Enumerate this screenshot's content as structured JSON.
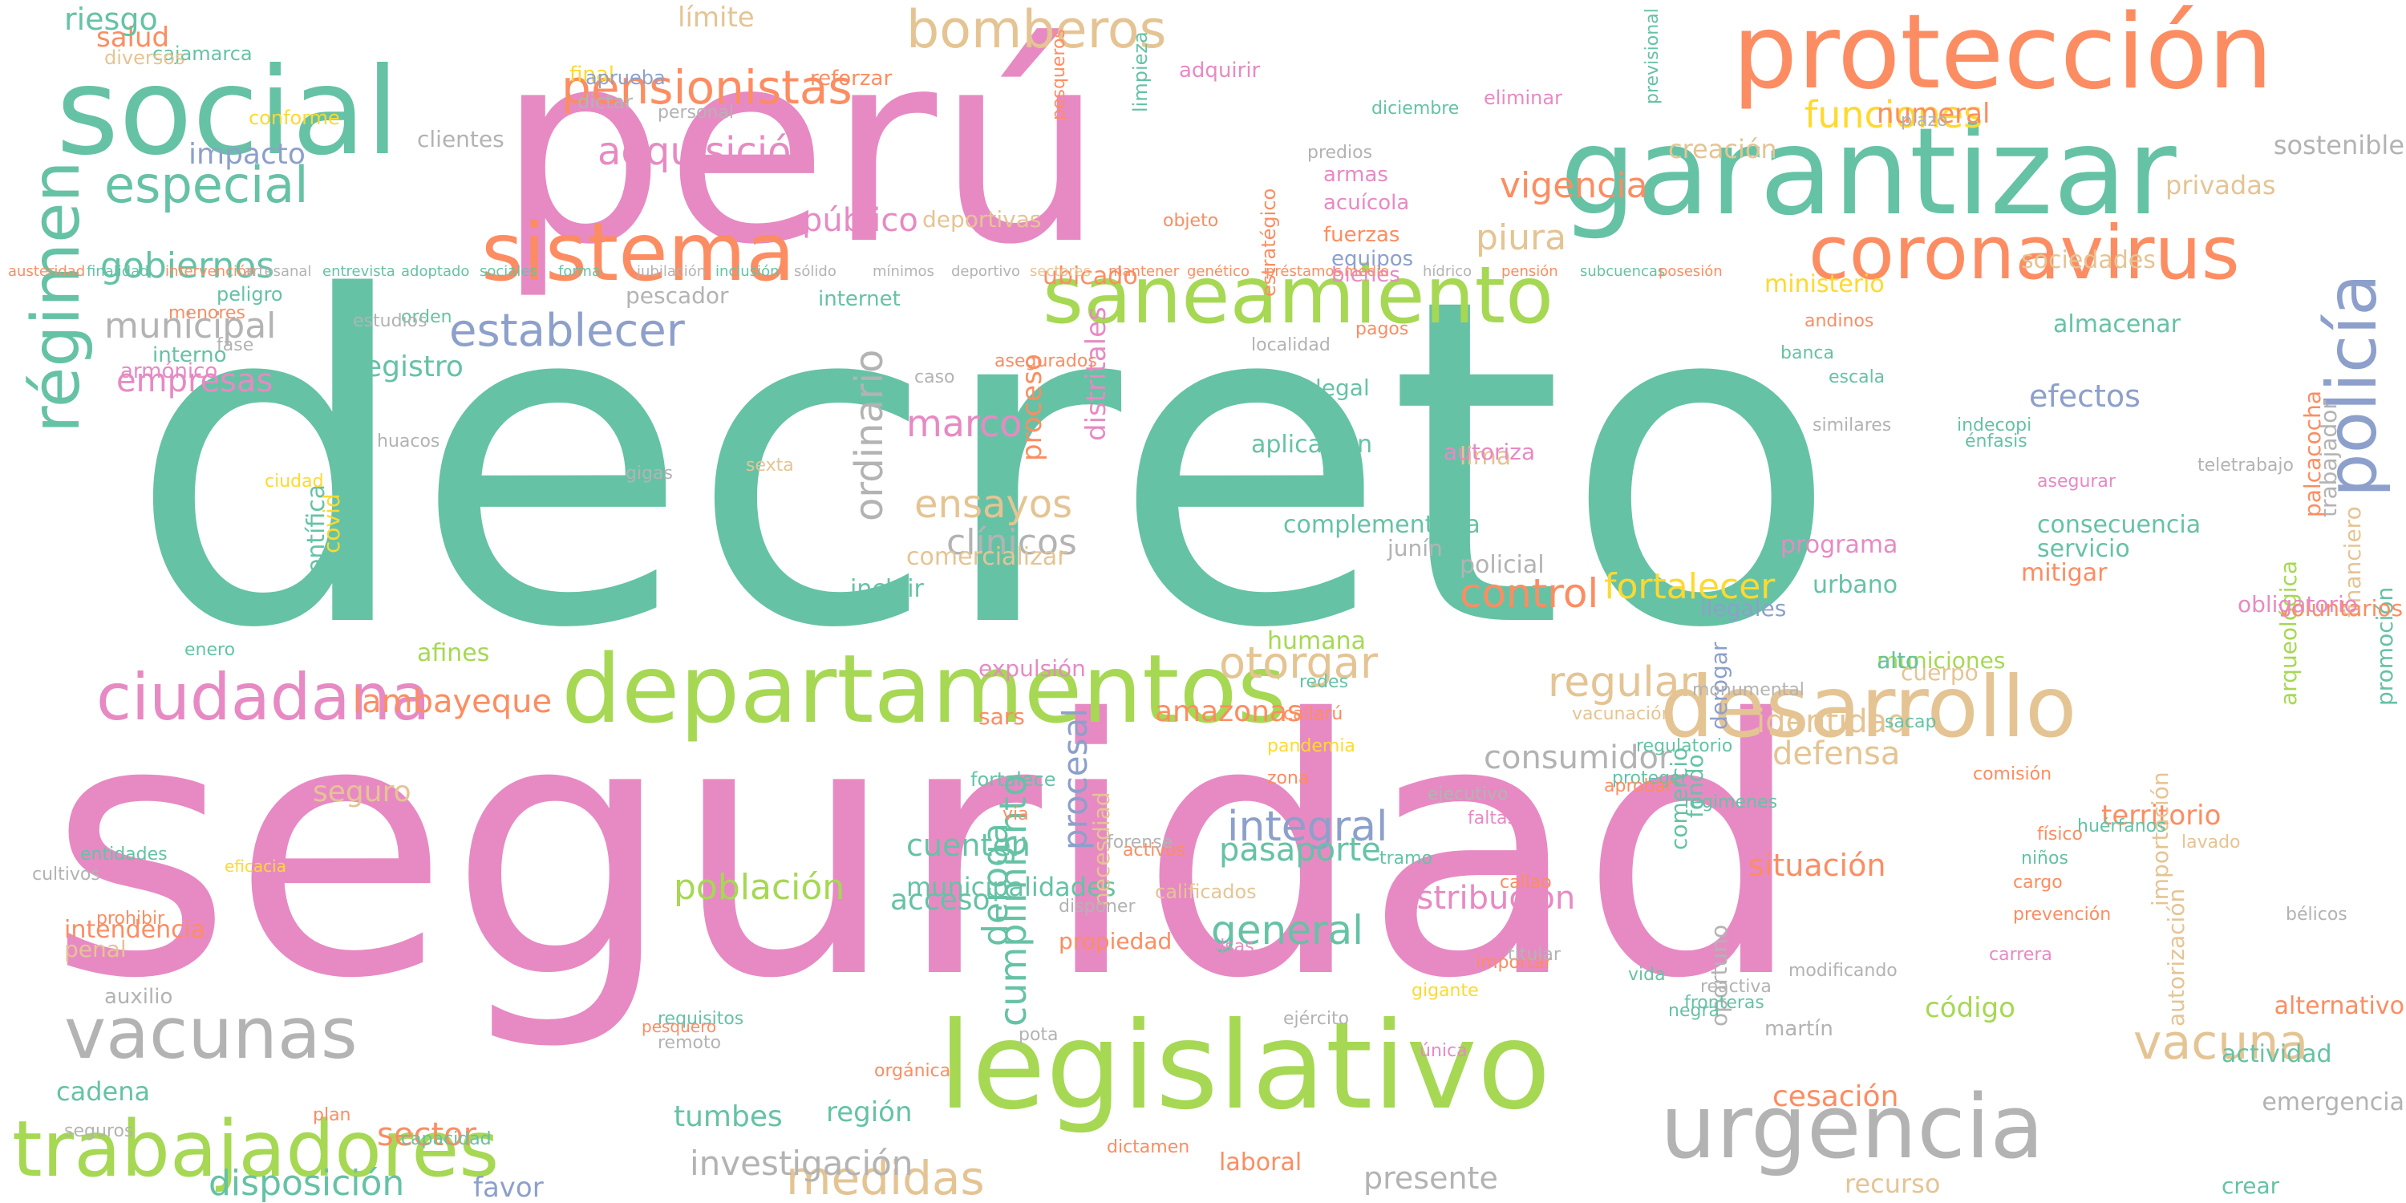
{
  "palette": {
    "teal": "#66c2a5",
    "pink": "#e78ac3",
    "green": "#a6d854",
    "orange": "#fc8d62",
    "tan": "#e5c494",
    "gray": "#b3b3b3",
    "blue": "#8da0cb",
    "yellow": "#ffd92f"
  },
  "words": [
    {
      "text": "decreto",
      "color": "teal"
    },
    {
      "text": "seguridad",
      "color": "pink"
    },
    {
      "text": "perú",
      "color": "pink"
    },
    {
      "text": "garantizar",
      "color": "teal"
    },
    {
      "text": "protección",
      "color": "orange"
    },
    {
      "text": "social",
      "color": "teal"
    },
    {
      "text": "legislativo",
      "color": "green"
    },
    {
      "text": "departamentos",
      "color": "green"
    },
    {
      "text": "saneamiento",
      "color": "green"
    },
    {
      "text": "sistema",
      "color": "orange"
    },
    {
      "text": "coronavirus",
      "color": "orange"
    },
    {
      "text": "urgencia",
      "color": "gray"
    },
    {
      "text": "desarrollo",
      "color": "tan"
    },
    {
      "text": "vacunas",
      "color": "gray"
    },
    {
      "text": "trabajadores",
      "color": "green"
    },
    {
      "text": "ciudadana",
      "color": "pink"
    },
    {
      "text": "bomberos",
      "color": "tan"
    },
    {
      "text": "pensionistas",
      "color": "orange"
    },
    {
      "text": "régimen",
      "color": "teal"
    },
    {
      "text": "policía",
      "color": "blue"
    },
    {
      "text": "establecer",
      "color": "blue"
    },
    {
      "text": "especial",
      "color": "teal"
    },
    {
      "text": "adquisición",
      "color": "pink"
    },
    {
      "text": "funciones",
      "color": "yellow"
    },
    {
      "text": "control",
      "color": "orange"
    },
    {
      "text": "vacuna",
      "color": "tan"
    },
    {
      "text": "medidas",
      "color": "tan"
    },
    {
      "text": "integral",
      "color": "blue"
    },
    {
      "text": "general",
      "color": "teal"
    },
    {
      "text": "otorgar",
      "color": "tan"
    },
    {
      "text": "regular",
      "color": "tan"
    },
    {
      "text": "vigencia",
      "color": "orange"
    },
    {
      "text": "fortalecer",
      "color": "yellow"
    },
    {
      "text": "ensayos",
      "color": "tan"
    },
    {
      "text": "clínicos",
      "color": "gray"
    },
    {
      "text": "marco",
      "color": "pink"
    },
    {
      "text": "piura",
      "color": "tan"
    },
    {
      "text": "público",
      "color": "pink"
    },
    {
      "text": "municipal",
      "color": "gray"
    },
    {
      "text": "gobiernos",
      "color": "teal"
    },
    {
      "text": "empresas",
      "color": "pink"
    },
    {
      "text": "impacto",
      "color": "blue"
    },
    {
      "text": "salud",
      "color": "orange"
    },
    {
      "text": "riesgo",
      "color": "teal"
    },
    {
      "text": "límite",
      "color": "tan"
    },
    {
      "text": "numeral",
      "color": "orange"
    },
    {
      "text": "creación",
      "color": "tan"
    },
    {
      "text": "sostenible",
      "color": "gray"
    },
    {
      "text": "efectos",
      "color": "blue"
    },
    {
      "text": "privadas",
      "color": "tan"
    },
    {
      "text": "sociedades",
      "color": "tan"
    },
    {
      "text": "ubicado",
      "color": "orange"
    },
    {
      "text": "ministerio",
      "color": "yellow"
    },
    {
      "text": "almacenar",
      "color": "teal"
    },
    {
      "text": "distritales",
      "color": "pink"
    },
    {
      "text": "ordinario",
      "color": "gray"
    },
    {
      "text": "proceso",
      "color": "orange"
    },
    {
      "text": "registro",
      "color": "teal"
    },
    {
      "text": "lambayeque",
      "color": "orange"
    },
    {
      "text": "defensa",
      "color": "tan"
    },
    {
      "text": "disposición",
      "color": "teal"
    },
    {
      "text": "pasaporte",
      "color": "teal"
    },
    {
      "text": "seguro",
      "color": "tan"
    },
    {
      "text": "consumidor",
      "color": "gray"
    },
    {
      "text": "situación",
      "color": "orange"
    },
    {
      "text": "identidad",
      "color": "tan"
    },
    {
      "text": "amazonas",
      "color": "orange"
    },
    {
      "text": "distribución",
      "color": "pink"
    },
    {
      "text": "deroga",
      "color": "teal"
    },
    {
      "text": "procesal",
      "color": "blue"
    },
    {
      "text": "cumplimiento",
      "color": "teal"
    },
    {
      "text": "población",
      "color": "green"
    },
    {
      "text": "investigación",
      "color": "gray"
    },
    {
      "text": "cuenten",
      "color": "teal"
    },
    {
      "text": "tumbes",
      "color": "teal"
    },
    {
      "text": "sector",
      "color": "orange"
    },
    {
      "text": "favor",
      "color": "blue"
    },
    {
      "text": "presente",
      "color": "gray"
    },
    {
      "text": "acceso",
      "color": "teal"
    },
    {
      "text": "cesación",
      "color": "orange"
    },
    {
      "text": "región",
      "color": "teal"
    },
    {
      "text": "municipalidades",
      "color": "teal"
    },
    {
      "text": "código",
      "color": "green"
    },
    {
      "text": "territorio",
      "color": "orange"
    },
    {
      "text": "alternativo",
      "color": "orange"
    },
    {
      "text": "actividad",
      "color": "teal"
    },
    {
      "text": "emergencia",
      "color": "gray"
    },
    {
      "text": "crear",
      "color": "teal"
    },
    {
      "text": "recurso",
      "color": "tan"
    },
    {
      "text": "laboral",
      "color": "orange"
    },
    {
      "text": "cadena",
      "color": "teal"
    },
    {
      "text": "penal",
      "color": "tan"
    },
    {
      "text": "intendencia",
      "color": "orange"
    },
    {
      "text": "complementaria",
      "color": "teal"
    },
    {
      "text": "humana",
      "color": "green"
    },
    {
      "text": "policial",
      "color": "gray"
    },
    {
      "text": "consecuencia",
      "color": "teal"
    },
    {
      "text": "servicio",
      "color": "teal"
    },
    {
      "text": "mitigar",
      "color": "orange"
    },
    {
      "text": "urbano",
      "color": "teal"
    },
    {
      "text": "programa",
      "color": "pink"
    },
    {
      "text": "ilegales",
      "color": "blue"
    },
    {
      "text": "municiones",
      "color": "green"
    },
    {
      "text": "cuerpo",
      "color": "tan"
    },
    {
      "text": "alto",
      "color": "teal"
    },
    {
      "text": "lima",
      "color": "tan"
    },
    {
      "text": "cuentas",
      "color": "teal"
    },
    {
      "text": "incluir",
      "color": "teal"
    },
    {
      "text": "comercializar",
      "color": "tan"
    },
    {
      "text": "aplicación",
      "color": "teal"
    },
    {
      "text": "legal",
      "color": "teal"
    },
    {
      "text": "autoriza",
      "color": "pink"
    },
    {
      "text": "afines",
      "color": "green"
    },
    {
      "text": "científica",
      "color": "teal"
    },
    {
      "text": "covid",
      "color": "yellow"
    },
    {
      "text": "junín",
      "color": "gray"
    },
    {
      "text": "sars",
      "color": "orange"
    },
    {
      "text": "expulsión",
      "color": "pink"
    },
    {
      "text": "propiedad",
      "color": "orange"
    },
    {
      "text": "necesdiad",
      "color": "tan"
    },
    {
      "text": "comercio",
      "color": "teal"
    },
    {
      "text": "fondo",
      "color": "teal"
    },
    {
      "text": "derogar",
      "color": "blue"
    },
    {
      "text": "oportuno",
      "color": "gray"
    },
    {
      "text": "importación",
      "color": "tan"
    },
    {
      "text": "autorización",
      "color": "tan"
    },
    {
      "text": "arqueológica",
      "color": "green"
    },
    {
      "text": "promoción",
      "color": "teal"
    },
    {
      "text": "financiero",
      "color": "tan"
    },
    {
      "text": "trabajador",
      "color": "gray"
    },
    {
      "text": "palcacocha",
      "color": "orange"
    },
    {
      "text": "voluntarios",
      "color": "orange"
    },
    {
      "text": "obligatorio",
      "color": "pink"
    },
    {
      "text": "armónico",
      "color": "pink"
    },
    {
      "text": "interno",
      "color": "teal"
    },
    {
      "text": "peligro",
      "color": "teal"
    },
    {
      "text": "pescador",
      "color": "gray"
    },
    {
      "text": "internet",
      "color": "teal"
    },
    {
      "text": "deportivas",
      "color": "tan"
    },
    {
      "text": "armas",
      "color": "pink"
    },
    {
      "text": "acuícola",
      "color": "pink"
    },
    {
      "text": "fuerzas",
      "color": "orange"
    },
    {
      "text": "equipos",
      "color": "blue"
    },
    {
      "text": "bienes",
      "color": "pink"
    },
    {
      "text": "eliminar",
      "color": "pink"
    },
    {
      "text": "adquirir",
      "color": "pink"
    },
    {
      "text": "final",
      "color": "yellow"
    },
    {
      "text": "aprueba",
      "color": "blue"
    },
    {
      "text": "cajamarca",
      "color": "teal"
    },
    {
      "text": "diversos",
      "color": "tan"
    },
    {
      "text": "conforme",
      "color": "yellow"
    },
    {
      "text": "clientes",
      "color": "gray"
    },
    {
      "text": "dictar",
      "color": "gray"
    },
    {
      "text": "reforzar",
      "color": "orange"
    },
    {
      "text": "personal",
      "color": "gray"
    },
    {
      "text": "previsional",
      "color": "teal"
    },
    {
      "text": "estratégico",
      "color": "orange"
    },
    {
      "text": "pesqueros",
      "color": "orange"
    },
    {
      "text": "limpieza",
      "color": "teal"
    },
    {
      "text": "diciembre",
      "color": "teal"
    },
    {
      "text": "calificados",
      "color": "tan"
    },
    {
      "text": "activos",
      "color": "orange"
    },
    {
      "text": "disponer",
      "color": "gray"
    },
    {
      "text": "remoto",
      "color": "gray"
    },
    {
      "text": "requisitos",
      "color": "teal"
    },
    {
      "text": "orgánica",
      "color": "orange"
    },
    {
      "text": "pota",
      "color": "gray"
    },
    {
      "text": "pesquero",
      "color": "orange"
    },
    {
      "text": "auxilio",
      "color": "gray"
    },
    {
      "text": "plan",
      "color": "orange"
    },
    {
      "text": "capacidad",
      "color": "teal"
    },
    {
      "text": "dictamen",
      "color": "orange"
    },
    {
      "text": "eficacia",
      "color": "yellow"
    },
    {
      "text": "martín",
      "color": "gray"
    },
    {
      "text": "única",
      "color": "pink"
    },
    {
      "text": "ejército",
      "color": "gray"
    },
    {
      "text": "falsas",
      "color": "pink"
    },
    {
      "text": "importar",
      "color": "orange"
    },
    {
      "text": "vida",
      "color": "teal"
    },
    {
      "text": "reactiva",
      "color": "gray"
    },
    {
      "text": "negra",
      "color": "teal"
    },
    {
      "text": "modificando",
      "color": "gray"
    },
    {
      "text": "carrera",
      "color": "pink"
    },
    {
      "text": "prevención",
      "color": "orange"
    },
    {
      "text": "cargo",
      "color": "orange"
    },
    {
      "text": "niños",
      "color": "teal"
    },
    {
      "text": "físico",
      "color": "orange"
    },
    {
      "text": "lavado",
      "color": "tan"
    },
    {
      "text": "huérfanos",
      "color": "teal"
    },
    {
      "text": "fortalece",
      "color": "teal"
    },
    {
      "text": "vía",
      "color": "orange"
    },
    {
      "text": "forense",
      "color": "gray"
    },
    {
      "text": "tramo",
      "color": "teal"
    },
    {
      "text": "faltas",
      "color": "pink"
    },
    {
      "text": "callao",
      "color": "orange"
    },
    {
      "text": "titular",
      "color": "gray"
    },
    {
      "text": "proteger",
      "color": "teal"
    },
    {
      "text": "regulatorio",
      "color": "teal"
    },
    {
      "text": "monumental",
      "color": "gray"
    },
    {
      "text": "redes",
      "color": "teal"
    },
    {
      "text": "callarú",
      "color": "orange"
    },
    {
      "text": "pandemia",
      "color": "yellow"
    },
    {
      "text": "zona",
      "color": "orange"
    },
    {
      "text": "ejecutivo",
      "color": "gray"
    },
    {
      "text": "aprobar",
      "color": "orange"
    },
    {
      "text": "regimenes",
      "color": "teal"
    },
    {
      "text": "vacunación",
      "color": "tan"
    },
    {
      "text": "plazo",
      "color": "gray"
    },
    {
      "text": "asegurar",
      "color": "pink"
    },
    {
      "text": "teletrabajo",
      "color": "gray"
    },
    {
      "text": "indecopi",
      "color": "teal"
    },
    {
      "text": "huacos",
      "color": "gray"
    },
    {
      "text": "ciudad",
      "color": "yellow"
    },
    {
      "text": "gigas",
      "color": "gray"
    },
    {
      "text": "sexta",
      "color": "tan"
    },
    {
      "text": "caso",
      "color": "gray"
    },
    {
      "text": "asegurados",
      "color": "orange"
    },
    {
      "text": "orden",
      "color": "teal"
    },
    {
      "text": "predios",
      "color": "gray"
    },
    {
      "text": "objeto",
      "color": "orange"
    },
    {
      "text": "estudios",
      "color": "gray"
    },
    {
      "text": "menores",
      "color": "orange"
    },
    {
      "text": "seguros",
      "color": "gray"
    },
    {
      "text": "enero",
      "color": "teal"
    },
    {
      "text": "entidades",
      "color": "teal"
    },
    {
      "text": "prohibir",
      "color": "orange"
    },
    {
      "text": "gigante",
      "color": "yellow"
    },
    {
      "text": "fronteras",
      "color": "teal"
    },
    {
      "text": "bélicos",
      "color": "gray"
    },
    {
      "text": "cultivos",
      "color": "gray"
    },
    {
      "text": "fase",
      "color": "gray"
    },
    {
      "text": "sacap",
      "color": "teal"
    },
    {
      "text": "comisión",
      "color": "orange"
    },
    {
      "text": "localidad",
      "color": "gray"
    },
    {
      "text": "pagos",
      "color": "orange"
    },
    {
      "text": "andinos",
      "color": "orange"
    },
    {
      "text": "banca",
      "color": "teal"
    },
    {
      "text": "escala",
      "color": "teal"
    },
    {
      "text": "similares",
      "color": "gray"
    },
    {
      "text": "énfasis",
      "color": "teal"
    },
    {
      "text": "austeridad",
      "color": "orange"
    },
    {
      "text": "finalidad",
      "color": "teal"
    },
    {
      "text": "intervención",
      "color": "orange"
    },
    {
      "text": "artesanal",
      "color": "gray"
    },
    {
      "text": "entrevista",
      "color": "teal"
    },
    {
      "text": "adoptado",
      "color": "teal"
    },
    {
      "text": "sociales",
      "color": "teal"
    },
    {
      "text": "forma",
      "color": "teal"
    },
    {
      "text": "jubilación",
      "color": "gray"
    },
    {
      "text": "inclusión",
      "color": "teal"
    },
    {
      "text": "sólido",
      "color": "gray"
    },
    {
      "text": "mínimos",
      "color": "gray"
    },
    {
      "text": "deportivo",
      "color": "gray"
    },
    {
      "text": "sectores",
      "color": "tan"
    },
    {
      "text": "mantener",
      "color": "orange"
    },
    {
      "text": "genético",
      "color": "orange"
    },
    {
      "text": "préstamos",
      "color": "orange"
    },
    {
      "text": "medio",
      "color": "orange"
    },
    {
      "text": "hídrico",
      "color": "gray"
    },
    {
      "text": "pensión",
      "color": "orange"
    },
    {
      "text": "subcuencas",
      "color": "teal"
    },
    {
      "text": "posesión",
      "color": "orange"
    }
  ]
}
